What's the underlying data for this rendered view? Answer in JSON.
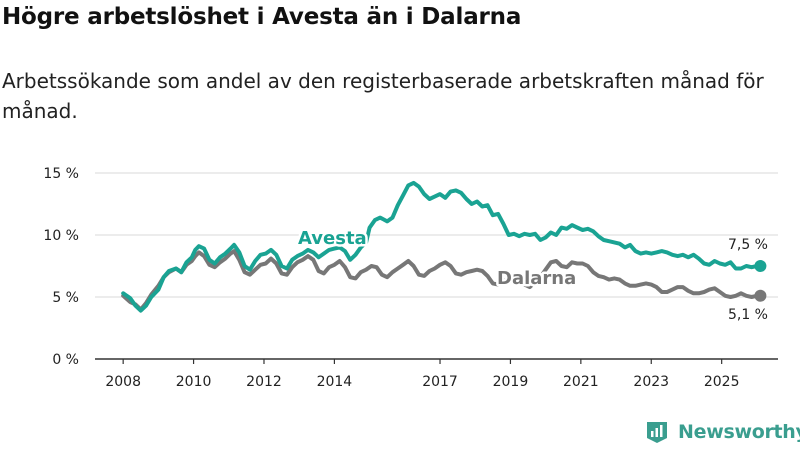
{
  "title": "Högre arbetslöshet i Avesta än i Dalarna",
  "subtitle": "Arbetssökande som andel av den registerbaserade arbetskraften månad för månad.",
  "brand": {
    "name": "Newsworthy",
    "icon": "newsworthy-logo-icon"
  },
  "colors": {
    "avesta": "#1aa393",
    "dalarna": "#777777",
    "grid": "#d9d9d9",
    "axis": "#333333"
  },
  "chart_data": {
    "type": "line",
    "title": "Högre arbetslöshet i Avesta än i Dalarna",
    "xlabel": "",
    "ylabel": "",
    "ylim": [
      0,
      15
    ],
    "xlim": [
      2007.2,
      2026.6
    ],
    "grid": true,
    "y_ticks": [
      {
        "value": 0,
        "label": "0 %"
      },
      {
        "value": 5,
        "label": "5 %"
      },
      {
        "value": 10,
        "label": "10 %"
      },
      {
        "value": 15,
        "label": "15 %"
      }
    ],
    "x_ticks": [
      {
        "value": 2008,
        "label": "2008"
      },
      {
        "value": 2010,
        "label": "2010"
      },
      {
        "value": 2012,
        "label": "2012"
      },
      {
        "value": 2014,
        "label": "2014"
      },
      {
        "value": 2017,
        "label": "2017"
      },
      {
        "value": 2019,
        "label": "2019"
      },
      {
        "value": 2021,
        "label": "2021"
      },
      {
        "value": 2023,
        "label": "2023"
      },
      {
        "value": 2025,
        "label": "2025"
      }
    ],
    "series": [
      {
        "name": "Avesta",
        "color": "#1aa393",
        "end_label": "7,5 %",
        "points": [
          [
            2008.0,
            5.3
          ],
          [
            2008.2,
            4.9
          ],
          [
            2008.35,
            4.3
          ],
          [
            2008.5,
            3.9
          ],
          [
            2008.65,
            4.3
          ],
          [
            2008.8,
            5.0
          ],
          [
            2009.0,
            5.6
          ],
          [
            2009.15,
            6.6
          ],
          [
            2009.3,
            7.1
          ],
          [
            2009.5,
            7.3
          ],
          [
            2009.65,
            7.0
          ],
          [
            2009.8,
            7.8
          ],
          [
            2009.95,
            8.2
          ],
          [
            2010.05,
            8.8
          ],
          [
            2010.15,
            9.1
          ],
          [
            2010.3,
            8.9
          ],
          [
            2010.45,
            8.0
          ],
          [
            2010.6,
            7.7
          ],
          [
            2010.75,
            8.2
          ],
          [
            2010.9,
            8.5
          ],
          [
            2011.05,
            8.9
          ],
          [
            2011.15,
            9.2
          ],
          [
            2011.3,
            8.6
          ],
          [
            2011.45,
            7.5
          ],
          [
            2011.6,
            7.2
          ],
          [
            2011.75,
            7.9
          ],
          [
            2011.9,
            8.4
          ],
          [
            2012.05,
            8.5
          ],
          [
            2012.2,
            8.8
          ],
          [
            2012.35,
            8.4
          ],
          [
            2012.5,
            7.5
          ],
          [
            2012.65,
            7.3
          ],
          [
            2012.8,
            8.0
          ],
          [
            2012.95,
            8.3
          ],
          [
            2013.1,
            8.5
          ],
          [
            2013.25,
            8.8
          ],
          [
            2013.4,
            8.6
          ],
          [
            2013.55,
            8.2
          ],
          [
            2013.7,
            8.5
          ],
          [
            2013.85,
            8.8
          ],
          [
            2014.0,
            8.9
          ],
          [
            2014.15,
            9.0
          ],
          [
            2014.3,
            8.7
          ],
          [
            2014.45,
            8.0
          ],
          [
            2014.6,
            8.4
          ],
          [
            2014.75,
            9.0
          ],
          [
            2014.9,
            9.4
          ],
          [
            2015.0,
            10.6
          ],
          [
            2015.15,
            11.2
          ],
          [
            2015.3,
            11.4
          ],
          [
            2015.5,
            11.1
          ],
          [
            2015.65,
            11.4
          ],
          [
            2015.8,
            12.4
          ],
          [
            2015.95,
            13.2
          ],
          [
            2016.1,
            14.0
          ],
          [
            2016.25,
            14.2
          ],
          [
            2016.4,
            13.9
          ],
          [
            2016.55,
            13.3
          ],
          [
            2016.7,
            12.9
          ],
          [
            2016.85,
            13.1
          ],
          [
            2017.0,
            13.3
          ],
          [
            2017.15,
            13.0
          ],
          [
            2017.3,
            13.5
          ],
          [
            2017.45,
            13.6
          ],
          [
            2017.6,
            13.4
          ],
          [
            2017.75,
            12.9
          ],
          [
            2017.9,
            12.5
          ],
          [
            2018.05,
            12.7
          ],
          [
            2018.2,
            12.3
          ],
          [
            2018.35,
            12.4
          ],
          [
            2018.5,
            11.6
          ],
          [
            2018.65,
            11.7
          ],
          [
            2018.8,
            10.9
          ],
          [
            2018.95,
            10.0
          ],
          [
            2019.1,
            10.1
          ],
          [
            2019.25,
            9.9
          ],
          [
            2019.4,
            10.1
          ],
          [
            2019.55,
            10.0
          ],
          [
            2019.7,
            10.1
          ],
          [
            2019.85,
            9.6
          ],
          [
            2020.0,
            9.8
          ],
          [
            2020.15,
            10.2
          ],
          [
            2020.3,
            10.0
          ],
          [
            2020.45,
            10.6
          ],
          [
            2020.6,
            10.5
          ],
          [
            2020.75,
            10.8
          ],
          [
            2020.9,
            10.6
          ],
          [
            2021.05,
            10.4
          ],
          [
            2021.2,
            10.5
          ],
          [
            2021.35,
            10.3
          ],
          [
            2021.5,
            9.9
          ],
          [
            2021.65,
            9.6
          ],
          [
            2021.8,
            9.5
          ],
          [
            2021.95,
            9.4
          ],
          [
            2022.1,
            9.3
          ],
          [
            2022.25,
            9.0
          ],
          [
            2022.4,
            9.2
          ],
          [
            2022.55,
            8.7
          ],
          [
            2022.7,
            8.5
          ],
          [
            2022.85,
            8.6
          ],
          [
            2023.0,
            8.5
          ],
          [
            2023.15,
            8.6
          ],
          [
            2023.3,
            8.7
          ],
          [
            2023.45,
            8.6
          ],
          [
            2023.6,
            8.4
          ],
          [
            2023.75,
            8.3
          ],
          [
            2023.9,
            8.4
          ],
          [
            2024.05,
            8.2
          ],
          [
            2024.2,
            8.4
          ],
          [
            2024.35,
            8.1
          ],
          [
            2024.5,
            7.7
          ],
          [
            2024.65,
            7.6
          ],
          [
            2024.8,
            7.9
          ],
          [
            2024.95,
            7.7
          ],
          [
            2025.1,
            7.6
          ],
          [
            2025.25,
            7.8
          ],
          [
            2025.4,
            7.3
          ],
          [
            2025.55,
            7.3
          ],
          [
            2025.7,
            7.5
          ],
          [
            2025.85,
            7.4
          ],
          [
            2026.0,
            7.5
          ],
          [
            2026.1,
            7.5
          ]
        ]
      },
      {
        "name": "Dalarna",
        "color": "#777777",
        "end_label": "5,1 %",
        "points": [
          [
            2008.0,
            5.1
          ],
          [
            2008.2,
            4.6
          ],
          [
            2008.35,
            4.4
          ],
          [
            2008.5,
            4.0
          ],
          [
            2008.65,
            4.5
          ],
          [
            2008.8,
            5.2
          ],
          [
            2009.0,
            5.9
          ],
          [
            2009.15,
            6.6
          ],
          [
            2009.3,
            7.0
          ],
          [
            2009.5,
            7.3
          ],
          [
            2009.65,
            7.0
          ],
          [
            2009.8,
            7.6
          ],
          [
            2009.95,
            7.9
          ],
          [
            2010.05,
            8.3
          ],
          [
            2010.15,
            8.6
          ],
          [
            2010.3,
            8.3
          ],
          [
            2010.45,
            7.6
          ],
          [
            2010.6,
            7.4
          ],
          [
            2010.75,
            7.8
          ],
          [
            2010.9,
            8.1
          ],
          [
            2011.05,
            8.5
          ],
          [
            2011.15,
            8.7
          ],
          [
            2011.3,
            8.0
          ],
          [
            2011.45,
            7.0
          ],
          [
            2011.6,
            6.8
          ],
          [
            2011.75,
            7.2
          ],
          [
            2011.9,
            7.6
          ],
          [
            2012.05,
            7.7
          ],
          [
            2012.2,
            8.1
          ],
          [
            2012.35,
            7.7
          ],
          [
            2012.5,
            6.9
          ],
          [
            2012.65,
            6.8
          ],
          [
            2012.8,
            7.4
          ],
          [
            2012.95,
            7.8
          ],
          [
            2013.1,
            8.0
          ],
          [
            2013.25,
            8.3
          ],
          [
            2013.4,
            8.0
          ],
          [
            2013.55,
            7.1
          ],
          [
            2013.7,
            6.9
          ],
          [
            2013.85,
            7.4
          ],
          [
            2014.0,
            7.6
          ],
          [
            2014.15,
            7.9
          ],
          [
            2014.3,
            7.4
          ],
          [
            2014.45,
            6.6
          ],
          [
            2014.6,
            6.5
          ],
          [
            2014.75,
            7.0
          ],
          [
            2014.9,
            7.2
          ],
          [
            2015.05,
            7.5
          ],
          [
            2015.2,
            7.4
          ],
          [
            2015.35,
            6.8
          ],
          [
            2015.5,
            6.6
          ],
          [
            2015.65,
            7.0
          ],
          [
            2015.8,
            7.3
          ],
          [
            2015.95,
            7.6
          ],
          [
            2016.1,
            7.9
          ],
          [
            2016.25,
            7.5
          ],
          [
            2016.4,
            6.8
          ],
          [
            2016.55,
            6.7
          ],
          [
            2016.7,
            7.1
          ],
          [
            2016.85,
            7.3
          ],
          [
            2017.0,
            7.6
          ],
          [
            2017.15,
            7.8
          ],
          [
            2017.3,
            7.5
          ],
          [
            2017.45,
            6.9
          ],
          [
            2017.6,
            6.8
          ],
          [
            2017.75,
            7.0
          ],
          [
            2017.9,
            7.1
          ],
          [
            2018.05,
            7.2
          ],
          [
            2018.2,
            7.1
          ],
          [
            2018.35,
            6.7
          ],
          [
            2018.5,
            6.1
          ],
          [
            2018.65,
            6.0
          ],
          [
            2018.8,
            6.3
          ],
          [
            2018.95,
            6.5
          ],
          [
            2019.1,
            6.6
          ],
          [
            2019.25,
            6.4
          ],
          [
            2019.4,
            6.0
          ],
          [
            2019.55,
            5.8
          ],
          [
            2019.7,
            6.2
          ],
          [
            2019.85,
            6.6
          ],
          [
            2020.0,
            7.2
          ],
          [
            2020.15,
            7.8
          ],
          [
            2020.3,
            7.9
          ],
          [
            2020.45,
            7.5
          ],
          [
            2020.6,
            7.4
          ],
          [
            2020.75,
            7.8
          ],
          [
            2020.9,
            7.7
          ],
          [
            2021.05,
            7.7
          ],
          [
            2021.2,
            7.5
          ],
          [
            2021.35,
            7.0
          ],
          [
            2021.5,
            6.7
          ],
          [
            2021.65,
            6.6
          ],
          [
            2021.8,
            6.4
          ],
          [
            2021.95,
            6.5
          ],
          [
            2022.1,
            6.4
          ],
          [
            2022.25,
            6.1
          ],
          [
            2022.4,
            5.9
          ],
          [
            2022.55,
            5.9
          ],
          [
            2022.7,
            6.0
          ],
          [
            2022.85,
            6.1
          ],
          [
            2023.0,
            6.0
          ],
          [
            2023.15,
            5.8
          ],
          [
            2023.3,
            5.4
          ],
          [
            2023.45,
            5.4
          ],
          [
            2023.6,
            5.6
          ],
          [
            2023.75,
            5.8
          ],
          [
            2023.9,
            5.8
          ],
          [
            2024.05,
            5.5
          ],
          [
            2024.2,
            5.3
          ],
          [
            2024.35,
            5.3
          ],
          [
            2024.5,
            5.4
          ],
          [
            2024.65,
            5.6
          ],
          [
            2024.8,
            5.7
          ],
          [
            2024.95,
            5.4
          ],
          [
            2025.1,
            5.1
          ],
          [
            2025.25,
            5.0
          ],
          [
            2025.4,
            5.1
          ],
          [
            2025.55,
            5.3
          ],
          [
            2025.7,
            5.1
          ],
          [
            2025.85,
            5.0
          ],
          [
            2026.0,
            5.1
          ],
          [
            2026.1,
            5.1
          ]
        ]
      }
    ]
  }
}
